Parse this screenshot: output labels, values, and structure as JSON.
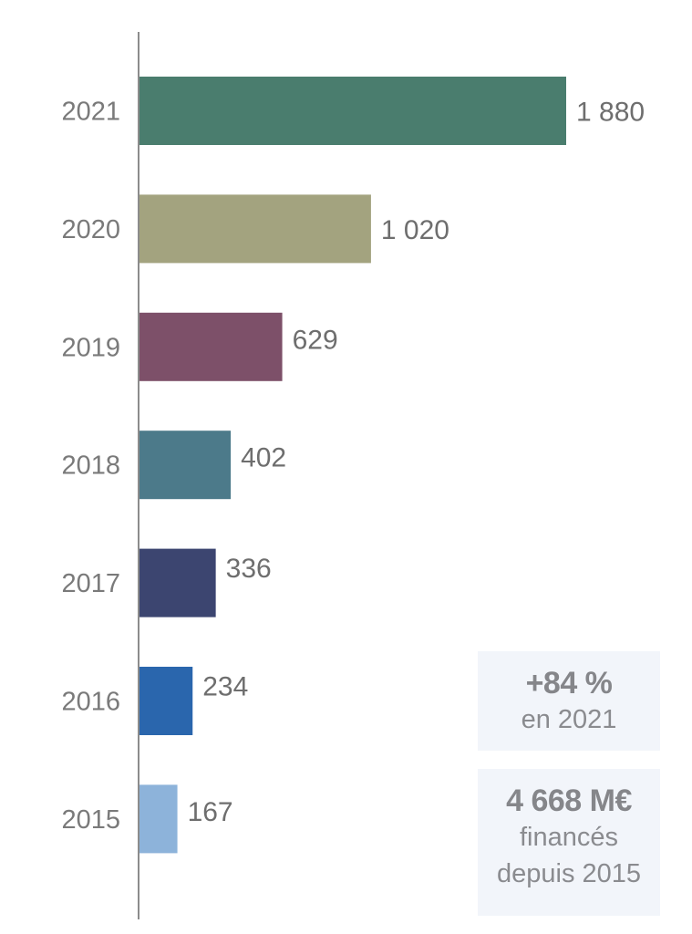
{
  "chart_data": {
    "type": "bar",
    "orientation": "horizontal",
    "categories": [
      "2021",
      "2020",
      "2019",
      "2018",
      "2017",
      "2016",
      "2015"
    ],
    "values": [
      1880,
      1020,
      629,
      402,
      336,
      234,
      167
    ],
    "value_labels": [
      "1 880",
      "1 020",
      "629",
      "402",
      "336",
      "234",
      "167"
    ],
    "colors": [
      "#4a7d6e",
      "#a3a37f",
      "#7d5069",
      "#4c7a8a",
      "#3c4570",
      "#2a66ad",
      "#8db3da"
    ],
    "xlim": [
      0,
      1880
    ],
    "grid": false,
    "title": "",
    "xlabel": "",
    "ylabel": ""
  },
  "callouts": [
    {
      "headline": "+84 %",
      "lines": [
        "en 2021"
      ]
    },
    {
      "headline": "4 668 M€",
      "lines": [
        "financés",
        "depuis 2015"
      ]
    }
  ]
}
